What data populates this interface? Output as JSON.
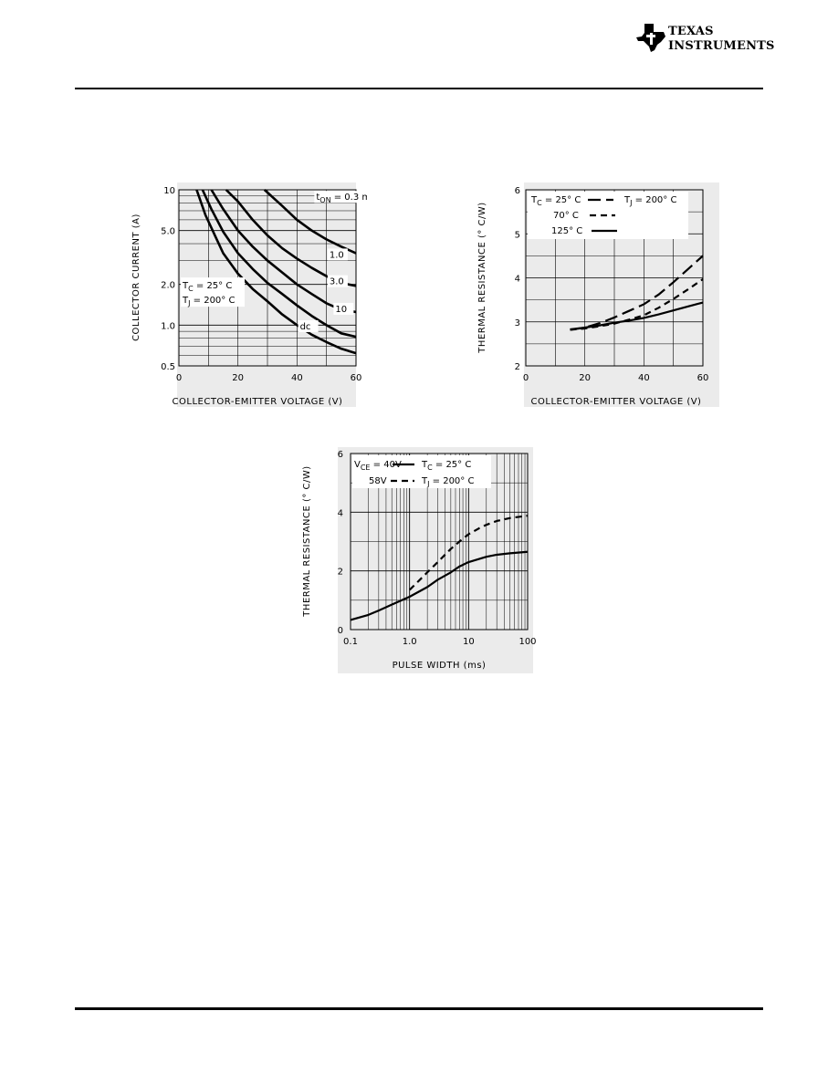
{
  "header": {
    "logo_line1": "TEXAS",
    "logo_line2": "INSTRUMENTS",
    "logo_icon": "texas-state-icon"
  },
  "chart_data": [
    {
      "type": "line",
      "xlabel": "COLLECTOR-EMITTER VOLTAGE (V)",
      "ylabel": "COLLECTOR CURRENT (A)",
      "xlim": [
        0,
        60
      ],
      "ylim": [
        0.5,
        10
      ],
      "y_scale": "log",
      "x_ticks": [
        0,
        20,
        40,
        60
      ],
      "y_ticks": [
        0.5,
        1.0,
        2.0,
        5.0,
        10
      ],
      "y_tick_labels": [
        "0.5",
        "1.0",
        "2.0",
        "5.0",
        "10"
      ],
      "grid": true,
      "conditions": [
        "Tc = 25° C",
        "TJ = 200° C"
      ],
      "series_label_prefix": "tON = ",
      "series_label_unit": " ms",
      "series": [
        {
          "name": "0.3",
          "points": [
            [
              29,
              10
            ],
            [
              35,
              7.6
            ],
            [
              40,
              6.0
            ],
            [
              45,
              5.0
            ],
            [
              50,
              4.3
            ],
            [
              55,
              3.8
            ],
            [
              60,
              3.4
            ]
          ]
        },
        {
          "name": "1.0",
          "points": [
            [
              16,
              10
            ],
            [
              20,
              8.2
            ],
            [
              25,
              6.0
            ],
            [
              30,
              4.6
            ],
            [
              35,
              3.7
            ],
            [
              40,
              3.1
            ],
            [
              45,
              2.65
            ],
            [
              50,
              2.3
            ],
            [
              55,
              2.05
            ],
            [
              60,
              1.95
            ]
          ]
        },
        {
          "name": "3.0",
          "points": [
            [
              11,
              10
            ],
            [
              15,
              7.2
            ],
            [
              20,
              5.0
            ],
            [
              25,
              3.8
            ],
            [
              30,
              3.0
            ],
            [
              35,
              2.45
            ],
            [
              40,
              2.0
            ],
            [
              45,
              1.7
            ],
            [
              50,
              1.45
            ],
            [
              55,
              1.3
            ],
            [
              60,
              1.25
            ]
          ]
        },
        {
          "name": "10",
          "points": [
            [
              8,
              10
            ],
            [
              11,
              7.2
            ],
            [
              15,
              4.9
            ],
            [
              20,
              3.4
            ],
            [
              25,
              2.6
            ],
            [
              30,
              2.05
            ],
            [
              35,
              1.7
            ],
            [
              40,
              1.4
            ],
            [
              45,
              1.17
            ],
            [
              50,
              1.0
            ],
            [
              55,
              0.87
            ],
            [
              60,
              0.82
            ]
          ]
        },
        {
          "name": "dc",
          "points": [
            [
              6,
              10
            ],
            [
              9,
              6.5
            ],
            [
              12,
              4.7
            ],
            [
              15,
              3.4
            ],
            [
              20,
              2.4
            ],
            [
              25,
              1.85
            ],
            [
              30,
              1.5
            ],
            [
              35,
              1.2
            ],
            [
              40,
              1.0
            ],
            [
              45,
              0.85
            ],
            [
              50,
              0.75
            ],
            [
              55,
              0.67
            ],
            [
              60,
              0.62
            ]
          ]
        }
      ]
    },
    {
      "type": "line",
      "xlabel": "COLLECTOR-EMITTER VOLTAGE (V)",
      "ylabel": "THERMAL RESISTANCE (° C/W)",
      "xlim": [
        0,
        60
      ],
      "ylim": [
        2,
        6
      ],
      "x_ticks": [
        0,
        20,
        40,
        60
      ],
      "y_ticks": [
        2,
        3,
        4,
        5,
        6
      ],
      "grid": true,
      "condition": "TJ = 200° C",
      "series": [
        {
          "name": "Tc = 25° C",
          "style": "long-dash",
          "points": [
            [
              15,
              2.83
            ],
            [
              20,
              2.87
            ],
            [
              25,
              2.97
            ],
            [
              30,
              3.1
            ],
            [
              35,
              3.25
            ],
            [
              40,
              3.4
            ],
            [
              45,
              3.62
            ],
            [
              50,
              3.9
            ],
            [
              55,
              4.2
            ],
            [
              60,
              4.5
            ]
          ]
        },
        {
          "name": "70° C",
          "style": "dash",
          "points": [
            [
              15,
              2.82
            ],
            [
              20,
              2.85
            ],
            [
              25,
              2.9
            ],
            [
              30,
              2.96
            ],
            [
              35,
              3.05
            ],
            [
              40,
              3.15
            ],
            [
              45,
              3.32
            ],
            [
              50,
              3.52
            ],
            [
              55,
              3.74
            ],
            [
              60,
              3.97
            ]
          ]
        },
        {
          "name": "125° C",
          "style": "solid",
          "points": [
            [
              15,
              2.82
            ],
            [
              20,
              2.87
            ],
            [
              25,
              2.92
            ],
            [
              30,
              2.98
            ],
            [
              35,
              3.03
            ],
            [
              40,
              3.09
            ],
            [
              45,
              3.17
            ],
            [
              50,
              3.26
            ],
            [
              55,
              3.35
            ],
            [
              60,
              3.44
            ]
          ]
        }
      ]
    },
    {
      "type": "line",
      "xlabel": "PULSE WIDTH (ms)",
      "ylabel": "THERMAL RESISTANCE (° C/W)",
      "xlim": [
        0.1,
        100
      ],
      "ylim": [
        0,
        6
      ],
      "x_scale": "log",
      "x_ticks": [
        0.1,
        1.0,
        10,
        100
      ],
      "x_tick_labels": [
        "0.1",
        "1.0",
        "10",
        "100"
      ],
      "y_ticks": [
        0,
        2,
        4,
        6
      ],
      "grid": true,
      "conditions": [
        "Tc = 25° C",
        "TJ = 200° C"
      ],
      "series": [
        {
          "name": "VCE = 40V",
          "style": "solid",
          "points": [
            [
              0.1,
              0.33
            ],
            [
              0.2,
              0.5
            ],
            [
              0.3,
              0.65
            ],
            [
              0.5,
              0.85
            ],
            [
              1.0,
              1.12
            ],
            [
              2,
              1.45
            ],
            [
              3,
              1.7
            ],
            [
              5,
              1.95
            ],
            [
              7,
              2.15
            ],
            [
              10,
              2.3
            ],
            [
              20,
              2.48
            ],
            [
              30,
              2.55
            ],
            [
              50,
              2.6
            ],
            [
              100,
              2.65
            ]
          ]
        },
        {
          "name": "58V",
          "style": "dash",
          "points": [
            [
              1.0,
              1.35
            ],
            [
              1.5,
              1.7
            ],
            [
              2,
              1.95
            ],
            [
              3,
              2.3
            ],
            [
              5,
              2.75
            ],
            [
              7,
              3.0
            ],
            [
              10,
              3.25
            ],
            [
              15,
              3.45
            ],
            [
              20,
              3.57
            ],
            [
              30,
              3.7
            ],
            [
              50,
              3.8
            ],
            [
              100,
              3.88
            ]
          ]
        }
      ]
    }
  ]
}
